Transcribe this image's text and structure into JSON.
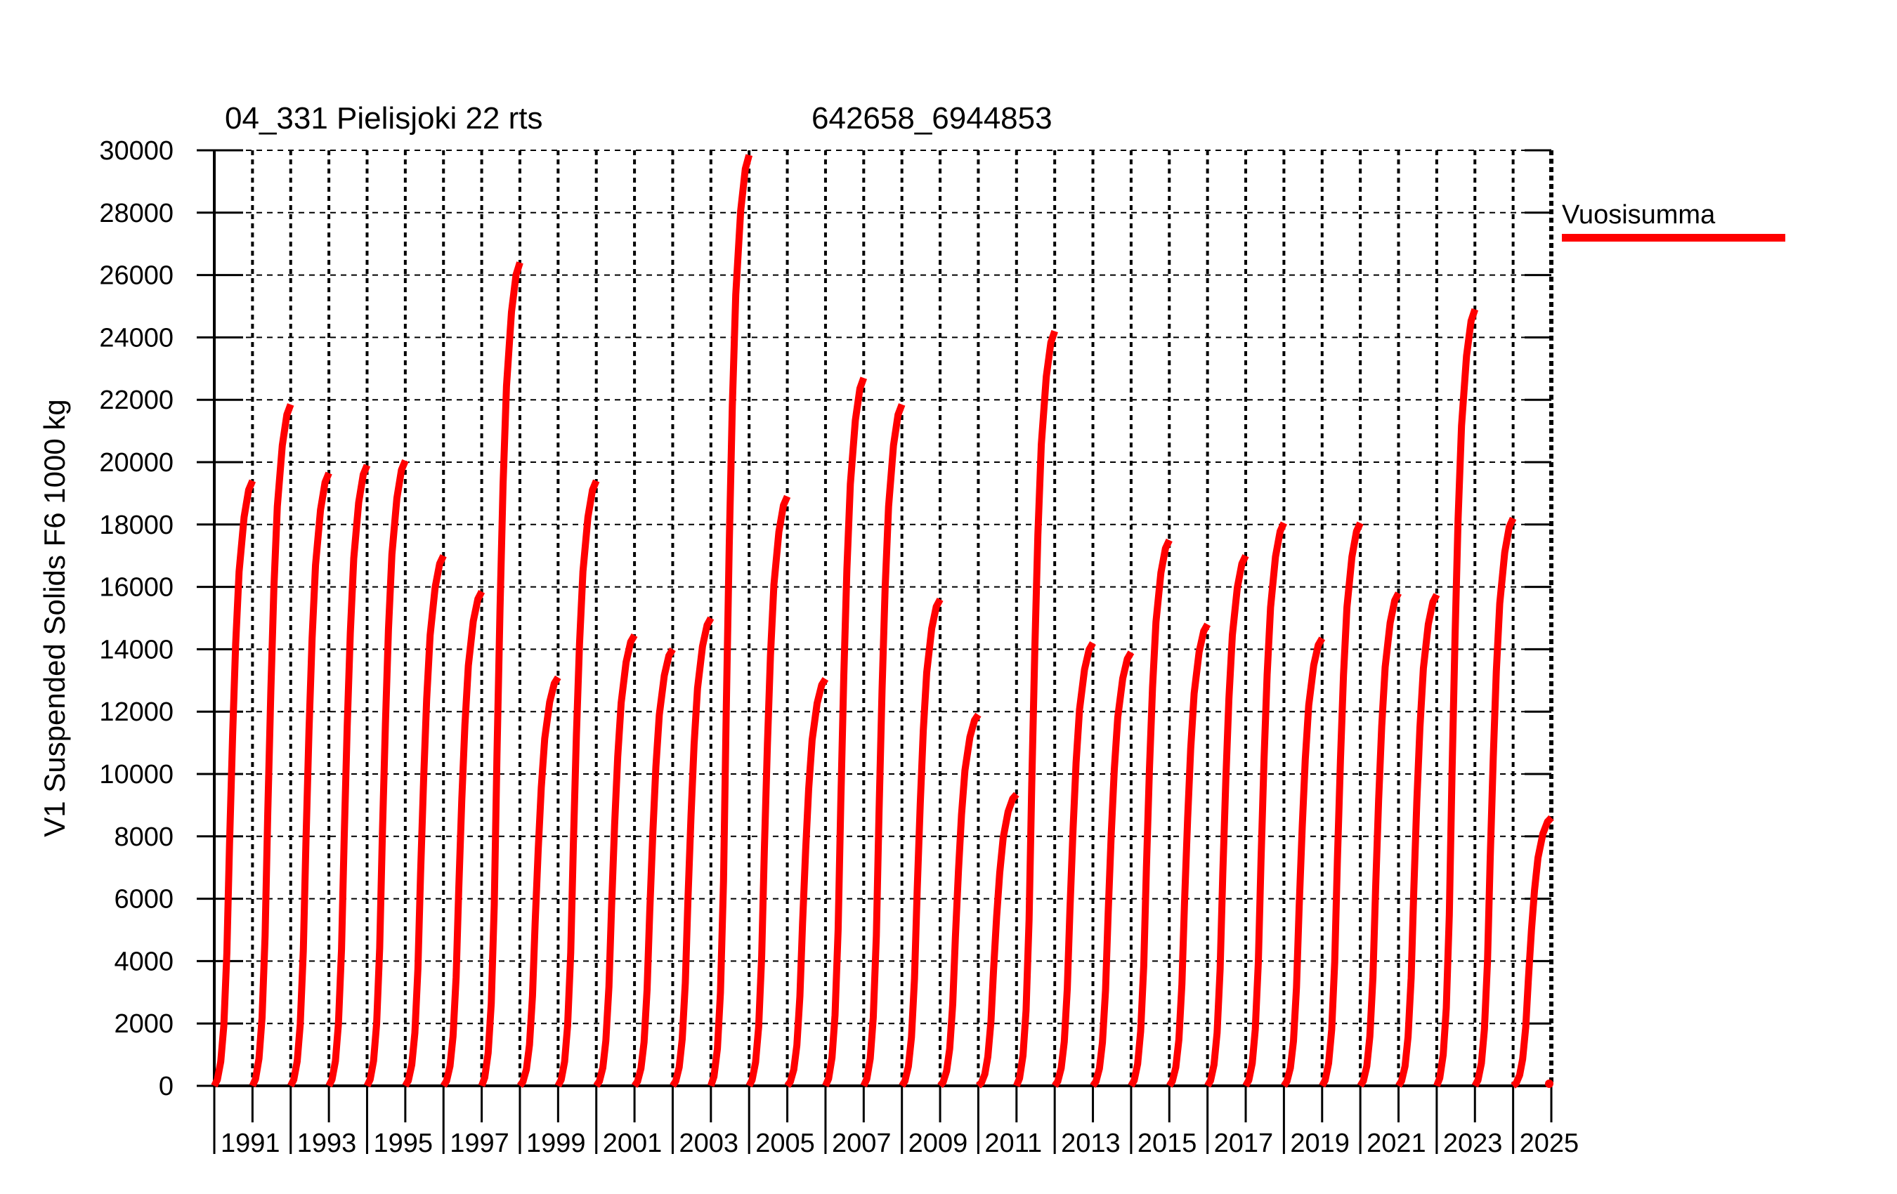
{
  "chart_data": {
    "type": "line",
    "title": "04_331 Pielisjoki 22 rts",
    "title2": "642658_6944853",
    "ylabel": "V1 Suspended Solids F6 1000 kg",
    "legend": {
      "label": "Vuosisumma",
      "color": "#ff0000",
      "position": "outside-right"
    },
    "x_axis": {
      "min": 1991,
      "max": 2026,
      "labeled_ticks": [
        1991,
        1993,
        1995,
        1997,
        1999,
        2001,
        2003,
        2005,
        2007,
        2009,
        2011,
        2013,
        2015,
        2017,
        2019,
        2021,
        2023,
        2025
      ],
      "minor_ticks": [
        1992,
        1994,
        1996,
        1998,
        2000,
        2002,
        2004,
        2006,
        2008,
        2010,
        2012,
        2014,
        2016,
        2018,
        2020,
        2022,
        2024,
        2026
      ],
      "gridlines": "dotted vertical line at every year"
    },
    "y_axis": {
      "min": 0,
      "max": 30000,
      "tick_step": 2000,
      "ticks": [
        0,
        2000,
        4000,
        6000,
        8000,
        10000,
        12000,
        14000,
        16000,
        18000,
        20000,
        22000,
        24000,
        26000,
        28000,
        30000
      ],
      "gridlines": "dashed horizontal line at every 2000"
    },
    "series_name": "Vuosisumma",
    "line_color": "#ff0000",
    "annual_totals": [
      {
        "year": 1991,
        "total": 19400
      },
      {
        "year": 1992,
        "total": 21850
      },
      {
        "year": 1993,
        "total": 19650
      },
      {
        "year": 1994,
        "total": 19900
      },
      {
        "year": 1995,
        "total": 20050
      },
      {
        "year": 1996,
        "total": 17000
      },
      {
        "year": 1997,
        "total": 15850
      },
      {
        "year": 1998,
        "total": 26400
      },
      {
        "year": 1999,
        "total": 13100
      },
      {
        "year": 2000,
        "total": 19400
      },
      {
        "year": 2001,
        "total": 14450
      },
      {
        "year": 2002,
        "total": 14000
      },
      {
        "year": 2003,
        "total": 15000
      },
      {
        "year": 2004,
        "total": 29850
      },
      {
        "year": 2005,
        "total": 18900
      },
      {
        "year": 2006,
        "total": 13050
      },
      {
        "year": 2007,
        "total": 22700
      },
      {
        "year": 2008,
        "total": 21850
      },
      {
        "year": 2009,
        "total": 15600
      },
      {
        "year": 2010,
        "total": 11900
      },
      {
        "year": 2011,
        "total": 9350
      },
      {
        "year": 2012,
        "total": 24200
      },
      {
        "year": 2013,
        "total": 14200
      },
      {
        "year": 2014,
        "total": 13900
      },
      {
        "year": 2015,
        "total": 17500
      },
      {
        "year": 2016,
        "total": 14800
      },
      {
        "year": 2017,
        "total": 17000
      },
      {
        "year": 2018,
        "total": 18050
      },
      {
        "year": 2019,
        "total": 14350
      },
      {
        "year": 2020,
        "total": 18050
      },
      {
        "year": 2021,
        "total": 15800
      },
      {
        "year": 2022,
        "total": 15750
      },
      {
        "year": 2023,
        "total": 24900
      },
      {
        "year": 2024,
        "total": 18200
      },
      {
        "year": 2025,
        "total": 8600
      }
    ],
    "cumulative_profile": {
      "t": [
        0,
        0.08,
        0.17,
        0.25,
        0.33,
        0.4,
        0.48,
        0.56,
        0.65,
        0.78,
        0.9,
        1.0
      ],
      "f": [
        0,
        0.01,
        0.04,
        0.1,
        0.22,
        0.4,
        0.58,
        0.73,
        0.85,
        0.94,
        0.985,
        1.0
      ]
    }
  }
}
